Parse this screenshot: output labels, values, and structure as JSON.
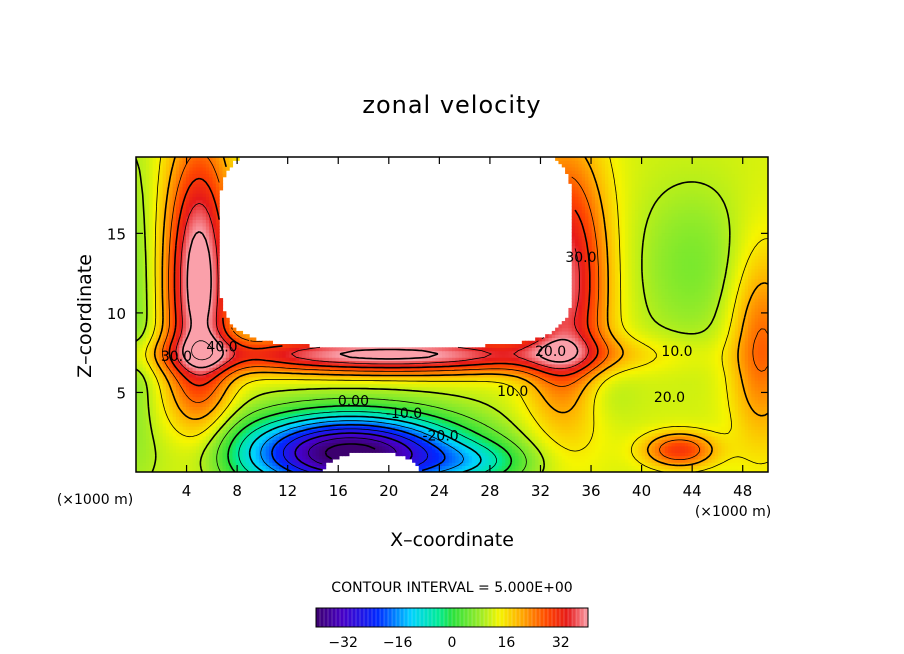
{
  "chart_data": {
    "type": "contour",
    "title": "zonal velocity",
    "xlabel": "X–coordinate",
    "ylabel": "Z–coordinate",
    "x_unit_label": "(×1000 m)",
    "z_unit_label": "(×1000 m)",
    "xlim": [
      0,
      50
    ],
    "ylim": [
      0,
      19.8
    ],
    "x_ticks": [
      4,
      8,
      12,
      16,
      20,
      24,
      28,
      32,
      36,
      40,
      44,
      48
    ],
    "x_tick_labels": [
      "4",
      "8",
      "12",
      "16",
      "20",
      "24",
      "28",
      "32",
      "36",
      "40",
      "44",
      "48"
    ],
    "y_ticks": [
      5,
      10,
      15
    ],
    "y_tick_labels": [
      "5",
      "10",
      "15"
    ],
    "contour_interval_text": "CONTOUR INTERVAL = 5.000E+00",
    "contour_interval": 5.0,
    "contour_labels": [
      {
        "text": "40.0",
        "x": 6.8,
        "z": 7.9
      },
      {
        "text": "30.0",
        "x": 3.2,
        "z": 7.3
      },
      {
        "text": "30.0",
        "x": 35.2,
        "z": 13.5
      },
      {
        "text": "20.0",
        "x": 32.8,
        "z": 7.6
      },
      {
        "text": "20.0",
        "x": 42.2,
        "z": 4.7
      },
      {
        "text": "10.0",
        "x": 29.8,
        "z": 5.1
      },
      {
        "text": "10.0",
        "x": 42.8,
        "z": 7.6
      },
      {
        "text": "0.00",
        "x": 17.2,
        "z": 4.5
      },
      {
        "text": "-10.0",
        "x": 21.2,
        "z": 3.7
      },
      {
        "text": "-20.0",
        "x": 24.1,
        "z": 2.3
      }
    ],
    "colorbar": {
      "min": -40,
      "max": 40,
      "ticks": [
        -32,
        -16,
        0,
        16,
        32
      ],
      "tick_labels": [
        "−32",
        "−16",
        "0",
        "16",
        "32"
      ]
    }
  }
}
